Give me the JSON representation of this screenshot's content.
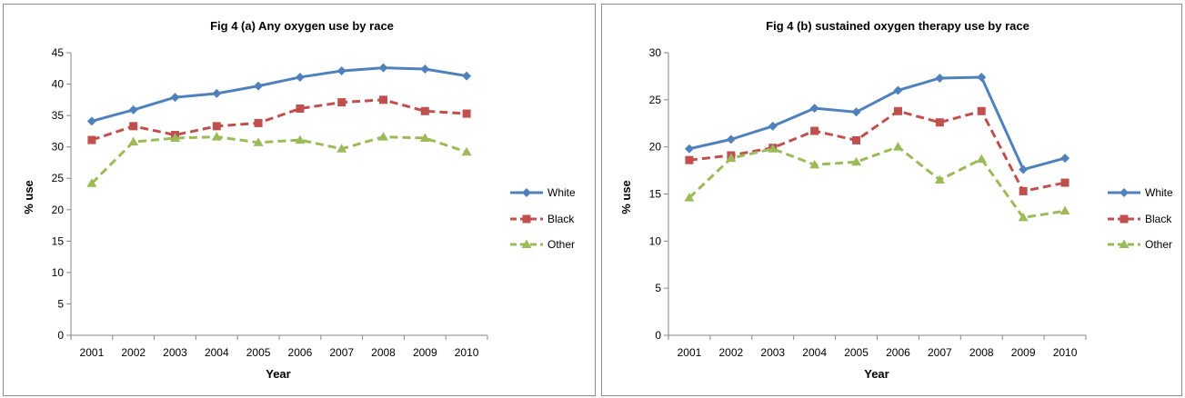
{
  "chart_data": [
    {
      "type": "line",
      "title": "Fig 4 (a) Any oxygen use by race",
      "xlabel": "Year",
      "ylabel": "% use",
      "categories": [
        "2001",
        "2002",
        "2003",
        "2004",
        "2005",
        "2006",
        "2007",
        "2008",
        "2009",
        "2010"
      ],
      "ylim": [
        0,
        45
      ],
      "yticks": [
        0,
        5,
        10,
        15,
        20,
        25,
        30,
        35,
        40,
        45
      ],
      "grid": false,
      "legend_position": "right",
      "series": [
        {
          "name": "White",
          "color": "#4f81bd",
          "marker": "diamond",
          "dash": "solid",
          "values": [
            34.1,
            35.9,
            37.9,
            38.5,
            39.7,
            41.1,
            42.1,
            42.6,
            42.4,
            41.3
          ]
        },
        {
          "name": "Black",
          "color": "#c0504d",
          "marker": "square",
          "dash": "dashed",
          "values": [
            31.1,
            33.3,
            31.9,
            33.3,
            33.8,
            36.1,
            37.1,
            37.5,
            35.7,
            35.3
          ]
        },
        {
          "name": "Other",
          "color": "#9bbb59",
          "marker": "triangle",
          "dash": "dashed",
          "values": [
            24.2,
            30.8,
            31.4,
            31.6,
            30.7,
            31.1,
            29.7,
            31.6,
            31.4,
            29.2
          ]
        }
      ]
    },
    {
      "type": "line",
      "title": "Fig 4 (b) sustained oxygen therapy use by race",
      "xlabel": "Year",
      "ylabel": "% use",
      "categories": [
        "2001",
        "2002",
        "2003",
        "2004",
        "2005",
        "2006",
        "2007",
        "2008",
        "2009",
        "2010"
      ],
      "ylim": [
        0,
        30
      ],
      "yticks": [
        0,
        5,
        10,
        15,
        20,
        25,
        30
      ],
      "grid": false,
      "legend_position": "right",
      "series": [
        {
          "name": "White",
          "color": "#4f81bd",
          "marker": "diamond",
          "dash": "solid",
          "values": [
            19.8,
            20.8,
            22.2,
            24.1,
            23.7,
            26.0,
            27.3,
            27.4,
            17.6,
            18.8
          ]
        },
        {
          "name": "Black",
          "color": "#c0504d",
          "marker": "square",
          "dash": "dashed",
          "values": [
            18.6,
            19.1,
            19.9,
            21.7,
            20.7,
            23.8,
            22.6,
            23.8,
            15.3,
            16.2
          ]
        },
        {
          "name": "Other",
          "color": "#9bbb59",
          "marker": "triangle",
          "dash": "dashed",
          "values": [
            14.6,
            18.8,
            19.8,
            18.1,
            18.4,
            20.0,
            16.5,
            18.7,
            12.5,
            13.2
          ]
        }
      ]
    }
  ]
}
